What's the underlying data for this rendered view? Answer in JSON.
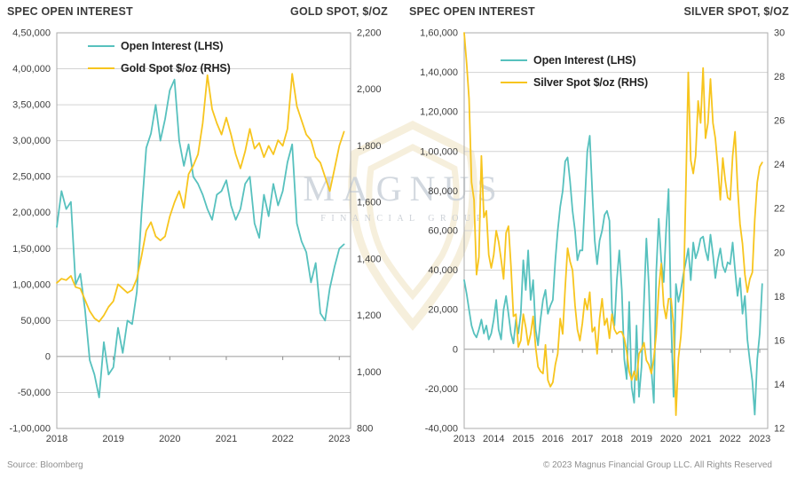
{
  "watermark": {
    "line1": "MAGNUS",
    "line2": "FINANCIAL GROUP"
  },
  "footer": {
    "source": "Source: Bloomberg",
    "copyright": "© 2023 Magnus Financial Group LLC. All Rights Reserved"
  },
  "colors": {
    "open_interest": "#57C1BE",
    "metal_spot": "#F7C51E",
    "gridline": "#D3D3D3",
    "zero_line": "#9A9A9A",
    "plot_border": "#ABABAB",
    "tick_text": "#3F3F3F"
  },
  "chart_data": [
    {
      "type": "line",
      "title_left": "SPEC OPEN INTEREST",
      "title_right": "GOLD SPOT, $/OZ",
      "grid": true,
      "legend_position": "top-left-inside",
      "x_ticks": [
        "2018",
        "2019",
        "2020",
        "2021",
        "2022",
        "2023"
      ],
      "y_left_ticks": [
        "4,50,000",
        "4,00,000",
        "3,50,000",
        "3,00,000",
        "2,50,000",
        "2,00,000",
        "1,50,000",
        "1,00,000",
        "50,000",
        "0",
        "-50,000",
        "-1,00,000"
      ],
      "y_right_ticks": [
        "2,200",
        "2,000",
        "1,800",
        "1,600",
        "1,400",
        "1,200",
        "1,000",
        "800"
      ],
      "x_range": [
        2018.0,
        2023.2
      ],
      "y_left_range": [
        -100000,
        450000
      ],
      "y_right_range": [
        800,
        2200
      ],
      "series": [
        {
          "name": "Open Interest (LHS)",
          "axis": "left",
          "color": "#57C1BE",
          "x_start": 2018.0,
          "x_step": 0.08333,
          "values": [
            180000,
            230000,
            205000,
            215000,
            100000,
            115000,
            65000,
            -5000,
            -25000,
            -57000,
            20000,
            -25000,
            -15000,
            40000,
            5000,
            50000,
            45000,
            90000,
            200000,
            290000,
            310000,
            350000,
            300000,
            330000,
            370000,
            385000,
            300000,
            265000,
            295000,
            250000,
            240000,
            225000,
            205000,
            190000,
            225000,
            230000,
            245000,
            210000,
            190000,
            205000,
            240000,
            250000,
            185000,
            165000,
            225000,
            195000,
            240000,
            210000,
            230000,
            270000,
            295000,
            185000,
            160000,
            145000,
            103000,
            130000,
            60000,
            50000,
            95000,
            125000,
            150000,
            156000
          ]
        },
        {
          "name": "Gold Spot $/oz (RHS)",
          "axis": "right",
          "color": "#F7C51E",
          "x_start": 2018.0,
          "x_step": 0.08333,
          "values": [
            1315,
            1330,
            1325,
            1340,
            1300,
            1295,
            1255,
            1215,
            1190,
            1178,
            1200,
            1230,
            1250,
            1310,
            1295,
            1280,
            1290,
            1330,
            1410,
            1500,
            1530,
            1480,
            1465,
            1480,
            1550,
            1600,
            1640,
            1580,
            1700,
            1730,
            1770,
            1880,
            2050,
            1930,
            1880,
            1840,
            1900,
            1840,
            1770,
            1720,
            1780,
            1860,
            1790,
            1810,
            1760,
            1800,
            1770,
            1820,
            1800,
            1860,
            2055,
            1940,
            1890,
            1840,
            1820,
            1760,
            1740,
            1690,
            1640,
            1720,
            1800,
            1850
          ]
        }
      ]
    },
    {
      "type": "line",
      "title_left": "SPEC OPEN INTEREST",
      "title_right": "SILVER SPOT, $/OZ",
      "grid": true,
      "legend_position": "top-left-inside",
      "x_ticks": [
        "2013",
        "2014",
        "2015",
        "2016",
        "2017",
        "2018",
        "2019",
        "2020",
        "2021",
        "2022",
        "2023"
      ],
      "y_left_ticks": [
        "1,60,000",
        "1,40,000",
        "1,20,000",
        "1,00,000",
        "80,000",
        "60,000",
        "40,000",
        "20,000",
        "0",
        "-20,000",
        "-40,000"
      ],
      "y_right_ticks": [
        "30",
        "28",
        "26",
        "24",
        "22",
        "20",
        "18",
        "16",
        "14",
        "12"
      ],
      "x_range": [
        2013.0,
        2023.27
      ],
      "y_left_range": [
        -40000,
        160000
      ],
      "y_right_range": [
        12,
        30
      ],
      "series": [
        {
          "name": "Open Interest (LHS)",
          "axis": "left",
          "color": "#57C1BE",
          "x_start": 2013.0,
          "x_step": 0.08333,
          "values": [
            35000,
            28000,
            20000,
            12000,
            8000,
            6000,
            10000,
            15000,
            8000,
            12000,
            5000,
            8000,
            15000,
            25000,
            10000,
            5000,
            20000,
            27000,
            18000,
            8000,
            3000,
            15000,
            8000,
            18000,
            45000,
            30000,
            50000,
            25000,
            35000,
            10000,
            2000,
            15000,
            25000,
            30000,
            18000,
            22000,
            25000,
            45000,
            60000,
            72000,
            80000,
            95000,
            97000,
            85000,
            70000,
            60000,
            45000,
            50000,
            50000,
            75000,
            100000,
            108000,
            80000,
            55000,
            43000,
            55000,
            60000,
            68000,
            70000,
            65000,
            20000,
            12000,
            35000,
            50000,
            30000,
            -5000,
            -15000,
            24000,
            -19000,
            -27000,
            12000,
            -24000,
            -9000,
            24000,
            56000,
            32000,
            -10000,
            -27000,
            39000,
            66000,
            45000,
            34000,
            60000,
            81000,
            15000,
            -24000,
            33000,
            24000,
            30000,
            38000,
            44000,
            51000,
            35000,
            54000,
            46000,
            50000,
            56000,
            57000,
            50000,
            45000,
            58000,
            48000,
            36000,
            45000,
            51000,
            42000,
            39000,
            44000,
            43000,
            54000,
            40000,
            27000,
            36000,
            18000,
            27000,
            5000,
            -6000,
            -16000,
            -33000,
            -5000,
            8000,
            33000
          ]
        },
        {
          "name": "Silver Spot $/oz (RHS)",
          "axis": "right",
          "color": "#F7C51E",
          "x_start": 2013.0,
          "x_step": 0.08333,
          "values": [
            30,
            28.6,
            27,
            23.2,
            22.4,
            19,
            19.8,
            24.4,
            21.6,
            21.9,
            19.9,
            19.3,
            19.9,
            21,
            20.5,
            19.7,
            18.8,
            20.9,
            21.2,
            19.4,
            17.1,
            17.2,
            15.7,
            16,
            17.2,
            16.6,
            15.8,
            16.3,
            17.1,
            15.7,
            14.8,
            14.6,
            14.5,
            15.8,
            14.2,
            13.9,
            14.1,
            14.9,
            15.4,
            17,
            16.3,
            18.4,
            20.2,
            19.6,
            19.2,
            17.6,
            16.5,
            16,
            16.8,
            17.9,
            17.4,
            18.2,
            16.4,
            16.6,
            15.4,
            17,
            17.9,
            16.7,
            17,
            16.1,
            17.2,
            16.5,
            16.3,
            16.4,
            16.4,
            16.1,
            15.5,
            14.6,
            14.2,
            14.6,
            14.2,
            15.4,
            15.6,
            15.9,
            15.1,
            14.9,
            14.5,
            15.2,
            16.3,
            18.3,
            19.5,
            17.6,
            17,
            17.9,
            17.9,
            16.7,
            12.6,
            15.2,
            16.2,
            17.9,
            22.8,
            28.2,
            24.2,
            23.6,
            24.4,
            26.9,
            25.9,
            28.4,
            25.2,
            25.9,
            27.9,
            25.9,
            25.2,
            23.9,
            22.4,
            24.3,
            23.3,
            22.5,
            22.4,
            24.4,
            25.5,
            23,
            21.3,
            20.4,
            19,
            18.2,
            18.8,
            19.1,
            21.5,
            23.2,
            23.9,
            24.1
          ]
        }
      ]
    }
  ]
}
